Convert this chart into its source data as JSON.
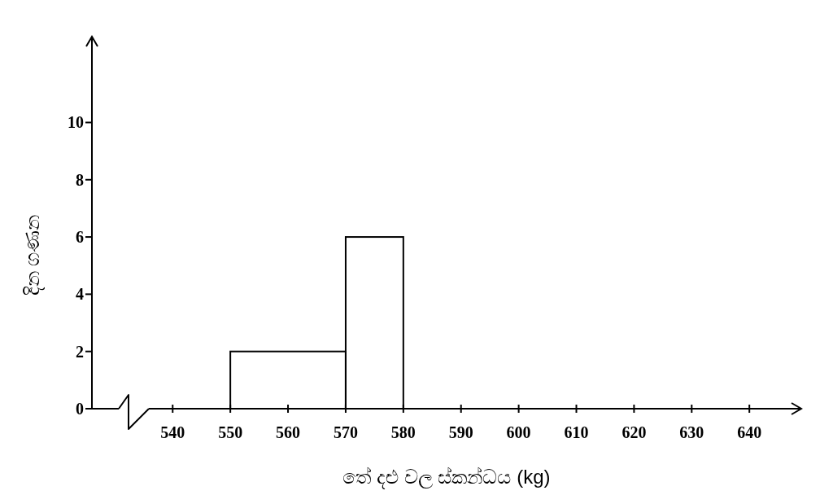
{
  "chart_data": {
    "type": "histogram",
    "xlabel": "තේ දළු වල ස්කන්ධය (kg)",
    "ylabel": "දින ගණන",
    "bins": [
      550,
      570,
      580
    ],
    "values": [
      2,
      6
    ],
    "color": "#000000",
    "xlim": [
      526,
      649
    ],
    "ylim": [
      0,
      13
    ],
    "xticks": [
      540,
      550,
      560,
      570,
      580,
      590,
      600,
      610,
      620,
      630,
      640
    ],
    "yticks": [
      0,
      2,
      4,
      6,
      8,
      10
    ]
  }
}
